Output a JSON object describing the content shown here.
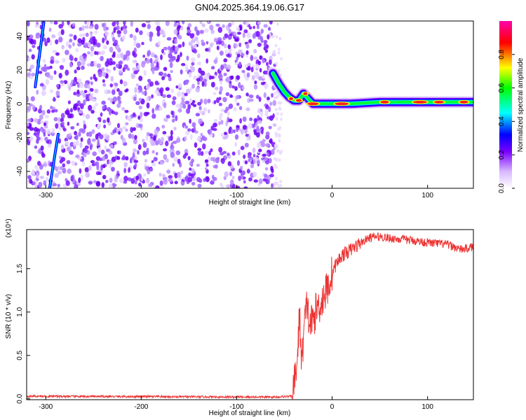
{
  "title": "GN04.2025.364.19.06.G17",
  "chart_data": [
    {
      "type": "heatmap",
      "xlabel": "Height of straight line (km)",
      "ylabel": "Frequency (Hz)",
      "xlim": [
        -320,
        148
      ],
      "ylim": [
        -50,
        49
      ],
      "x_ticks": [
        -300,
        -200,
        -100,
        0,
        100
      ],
      "y_ticks": [
        -40,
        -20,
        0,
        20,
        40
      ],
      "colorbar": {
        "label": "Normalized spectral amplitude",
        "range": [
          0,
          1
        ],
        "ticks": [
          "0.0",
          "0.2",
          "0.4",
          "0.6",
          "0.8"
        ],
        "colors": [
          "#ffffff",
          "#b070ff",
          "#0000ff",
          "#00ffff",
          "#00ff00",
          "#ffff00",
          "#ff0000",
          "#ff00aa"
        ]
      },
      "ridge": {
        "x": [
          -62,
          -56,
          -50,
          -45,
          -40,
          -35,
          -30,
          -25,
          -20,
          -10,
          0,
          20,
          50,
          80,
          110,
          148
        ],
        "y": [
          18,
          12,
          7,
          4,
          2,
          2,
          6,
          3,
          0,
          0,
          0,
          0,
          1,
          1,
          1,
          1
        ]
      },
      "noise_region_x": [
        -320,
        -60
      ],
      "diagonal_streaks": [
        {
          "x1": -311,
          "y1": 10,
          "x2": -302,
          "y2": 48
        },
        {
          "x1": -296,
          "y1": -50,
          "x2": -287,
          "y2": -18
        }
      ]
    },
    {
      "type": "line",
      "xlabel": "Height of straight line (km)",
      "ylabel": "SNR (10 * v/v)",
      "scale_label": "(x10⁴)",
      "xlim": [
        -320,
        148
      ],
      "ylim": [
        -0.01,
        1.95
      ],
      "x_ticks": [
        -300,
        -200,
        -100,
        0,
        100
      ],
      "y_ticks": [
        "0.0",
        "0.5",
        "1.0",
        "1.5"
      ],
      "y_tick_values": [
        0,
        0.5,
        1.0,
        1.5
      ],
      "color": "#ee3333",
      "x": [
        -320,
        -60,
        -42,
        -40,
        -36,
        -34,
        -32,
        -30,
        -28,
        -26,
        -24,
        -20,
        -16,
        -12,
        -8,
        -4,
        0,
        4,
        10,
        20,
        30,
        40,
        50,
        60,
        80,
        100,
        120,
        135,
        148
      ],
      "y": [
        0.03,
        0.02,
        0.03,
        0.15,
        0.5,
        1.05,
        0.35,
        0.75,
        0.95,
        1.1,
        0.85,
        0.9,
        1.05,
        1.1,
        1.2,
        1.3,
        1.45,
        1.55,
        1.65,
        1.72,
        1.8,
        1.86,
        1.87,
        1.85,
        1.83,
        1.8,
        1.78,
        1.72,
        1.75
      ]
    }
  ]
}
